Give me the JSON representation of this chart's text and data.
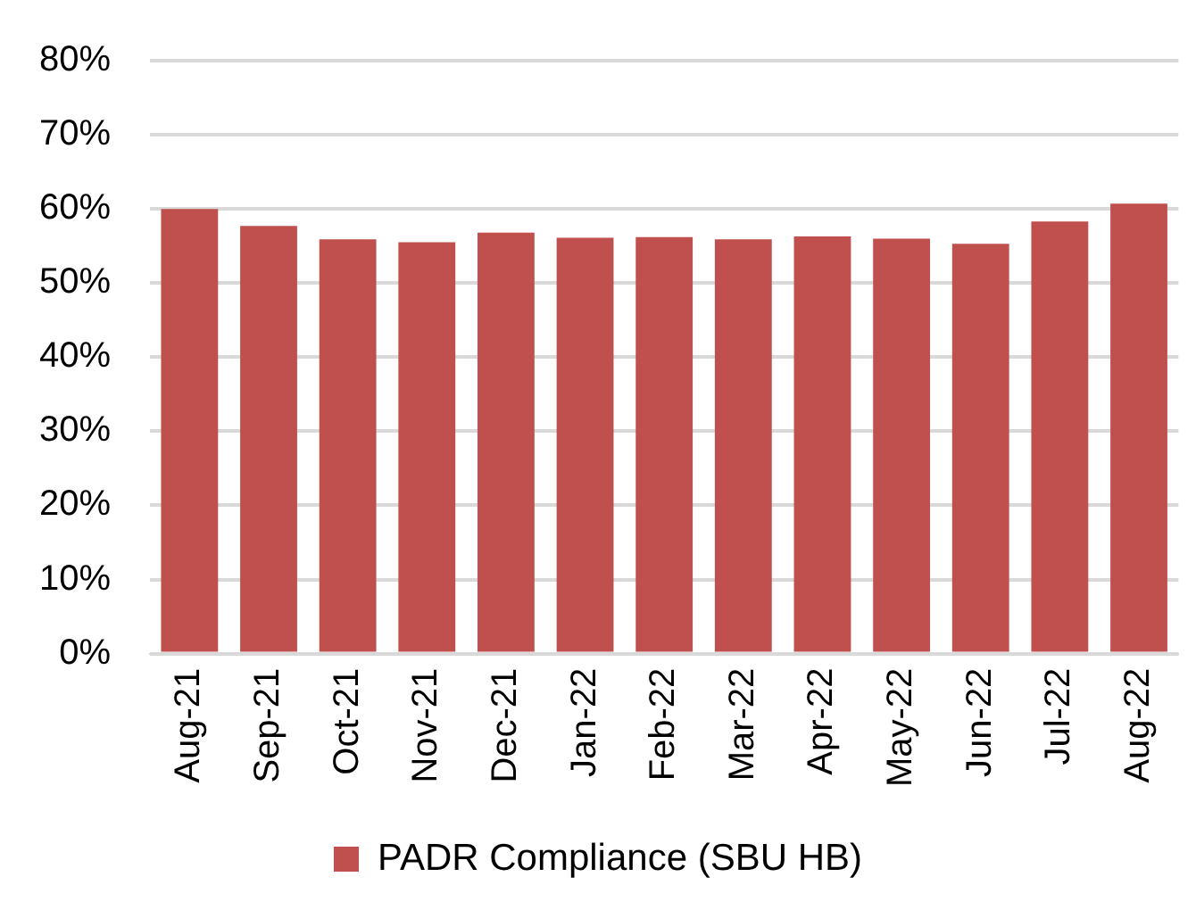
{
  "chart_data": {
    "type": "bar",
    "categories": [
      "Aug-21",
      "Sep-21",
      "Oct-21",
      "Nov-21",
      "Dec-21",
      "Jan-22",
      "Feb-22",
      "Mar-22",
      "Apr-22",
      "May-22",
      "Jun-22",
      "Jul-22",
      "Aug-22"
    ],
    "series": [
      {
        "name": "PADR Compliance (SBU HB)",
        "color": "#c0504d",
        "values": [
          60,
          57.7,
          55.9,
          55.5,
          56.8,
          56.1,
          56.2,
          55.9,
          56.3,
          56,
          55.3,
          58.3,
          60.7
        ]
      }
    ],
    "ylim": [
      0,
      80
    ],
    "yticks": [
      {
        "value": 0,
        "label": "0%"
      },
      {
        "value": 10,
        "label": "10%"
      },
      {
        "value": 20,
        "label": "20%"
      },
      {
        "value": 30,
        "label": "30%"
      },
      {
        "value": 40,
        "label": "40%"
      },
      {
        "value": 50,
        "label": "50%"
      },
      {
        "value": 60,
        "label": "60%"
      },
      {
        "value": 70,
        "label": "70%"
      },
      {
        "value": 80,
        "label": "80%"
      }
    ],
    "grid": "y",
    "legend": "bottom"
  }
}
